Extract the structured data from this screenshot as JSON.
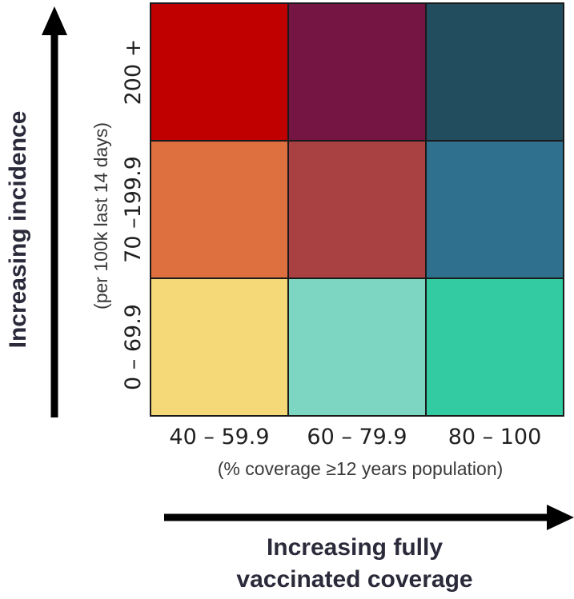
{
  "chart_data": {
    "type": "heatmap",
    "x_ticks": [
      "40 – 59.9",
      "60 – 79.9",
      "80 – 100"
    ],
    "x_sublabel": "(% coverage ≥12 years population)",
    "x_title_lines": [
      "Increasing fully",
      "vaccinated coverage"
    ],
    "y_ticks": [
      "0 – 69.9",
      "70 –199.9",
      "200 +"
    ],
    "y_sublabel": "(per 100k last 14 days)",
    "y_title": "Increasing incidence",
    "cells": [
      {
        "x": "40 – 59.9",
        "y": "200 +",
        "color": "#c00000"
      },
      {
        "x": "60 – 79.9",
        "y": "200 +",
        "color": "#751543"
      },
      {
        "x": "80 – 100",
        "y": "200 +",
        "color": "#224d5f"
      },
      {
        "x": "40 – 59.9",
        "y": "70 –199.9",
        "color": "#de703f"
      },
      {
        "x": "60 – 79.9",
        "y": "70 –199.9",
        "color": "#a94143"
      },
      {
        "x": "80 – 100",
        "y": "70 –199.9",
        "color": "#2e708d"
      },
      {
        "x": "40 – 59.9",
        "y": "0 – 69.9",
        "color": "#f5d877"
      },
      {
        "x": "60 – 79.9",
        "y": "0 – 69.9",
        "color": "#7dd6c1"
      },
      {
        "x": "80 – 100",
        "y": "0 – 69.9",
        "color": "#33cba2"
      }
    ],
    "grid": true
  }
}
